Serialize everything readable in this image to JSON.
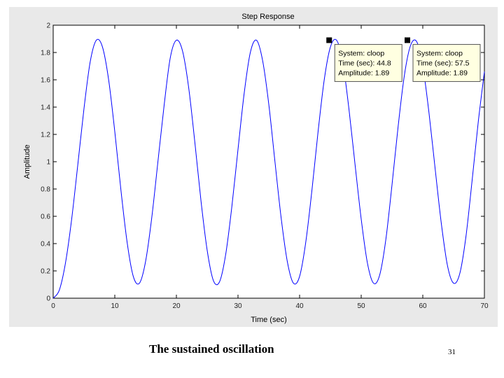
{
  "chart_data": {
    "type": "line",
    "title": "Step Response",
    "xlabel": "Time (sec)",
    "ylabel": "Amplitude",
    "xlim": [
      0,
      70
    ],
    "ylim": [
      0,
      2
    ],
    "xticks": [
      "0",
      "10",
      "20",
      "30",
      "40",
      "50",
      "60",
      "70"
    ],
    "yticks": [
      "0",
      "0.2",
      "0.4",
      "0.6",
      "0.8",
      "1",
      "1.2",
      "1.4",
      "1.6",
      "1.8",
      "2"
    ],
    "grid": false,
    "series": [
      {
        "color": "#0000ff",
        "x": [
          0,
          1,
          2,
          3,
          4,
          5,
          6,
          7,
          8,
          9,
          10,
          11,
          12,
          13,
          14,
          15,
          16,
          17,
          18,
          19,
          20,
          21,
          22,
          23,
          24,
          25,
          26,
          27,
          28,
          29,
          30,
          31,
          32,
          33,
          34,
          35,
          36,
          37,
          38,
          39,
          40,
          41,
          42,
          43,
          44,
          45,
          46,
          47,
          48,
          49,
          50,
          51,
          52,
          53,
          54,
          55,
          56,
          57,
          58,
          59,
          60,
          61,
          62,
          63,
          64,
          65,
          66,
          67,
          68,
          69,
          70
        ],
        "y": [
          0.0,
          0.06,
          0.26,
          0.58,
          0.98,
          1.39,
          1.73,
          1.89,
          1.84,
          1.6,
          1.22,
          0.79,
          0.41,
          0.16,
          0.11,
          0.27,
          0.59,
          1.0,
          1.41,
          1.76,
          1.89,
          1.81,
          1.54,
          1.14,
          0.71,
          0.35,
          0.13,
          0.12,
          0.32,
          0.67,
          1.09,
          1.5,
          1.8,
          1.89,
          1.74,
          1.42,
          1.0,
          0.59,
          0.27,
          0.11,
          0.16,
          0.41,
          0.79,
          1.22,
          1.6,
          1.84,
          1.89,
          1.73,
          1.39,
          0.98,
          0.58,
          0.26,
          0.11,
          0.17,
          0.43,
          0.83,
          1.26,
          1.63,
          1.85,
          1.88,
          1.7,
          1.36,
          0.95,
          0.55,
          0.24,
          0.11,
          0.18,
          0.45,
          0.86,
          1.29,
          1.66
        ]
      }
    ],
    "markers": [
      {
        "x": 44.8,
        "y": 1.89,
        "lines": [
          "System: cloop",
          "Time (sec): 44.8",
          "Amplitude: 1.89"
        ]
      },
      {
        "x": 57.5,
        "y": 1.89,
        "lines": [
          "System: cloop",
          "Time (sec): 57.5",
          "Amplitude: 1.89"
        ]
      }
    ]
  },
  "caption": "The sustained oscillation",
  "page_number": "31"
}
